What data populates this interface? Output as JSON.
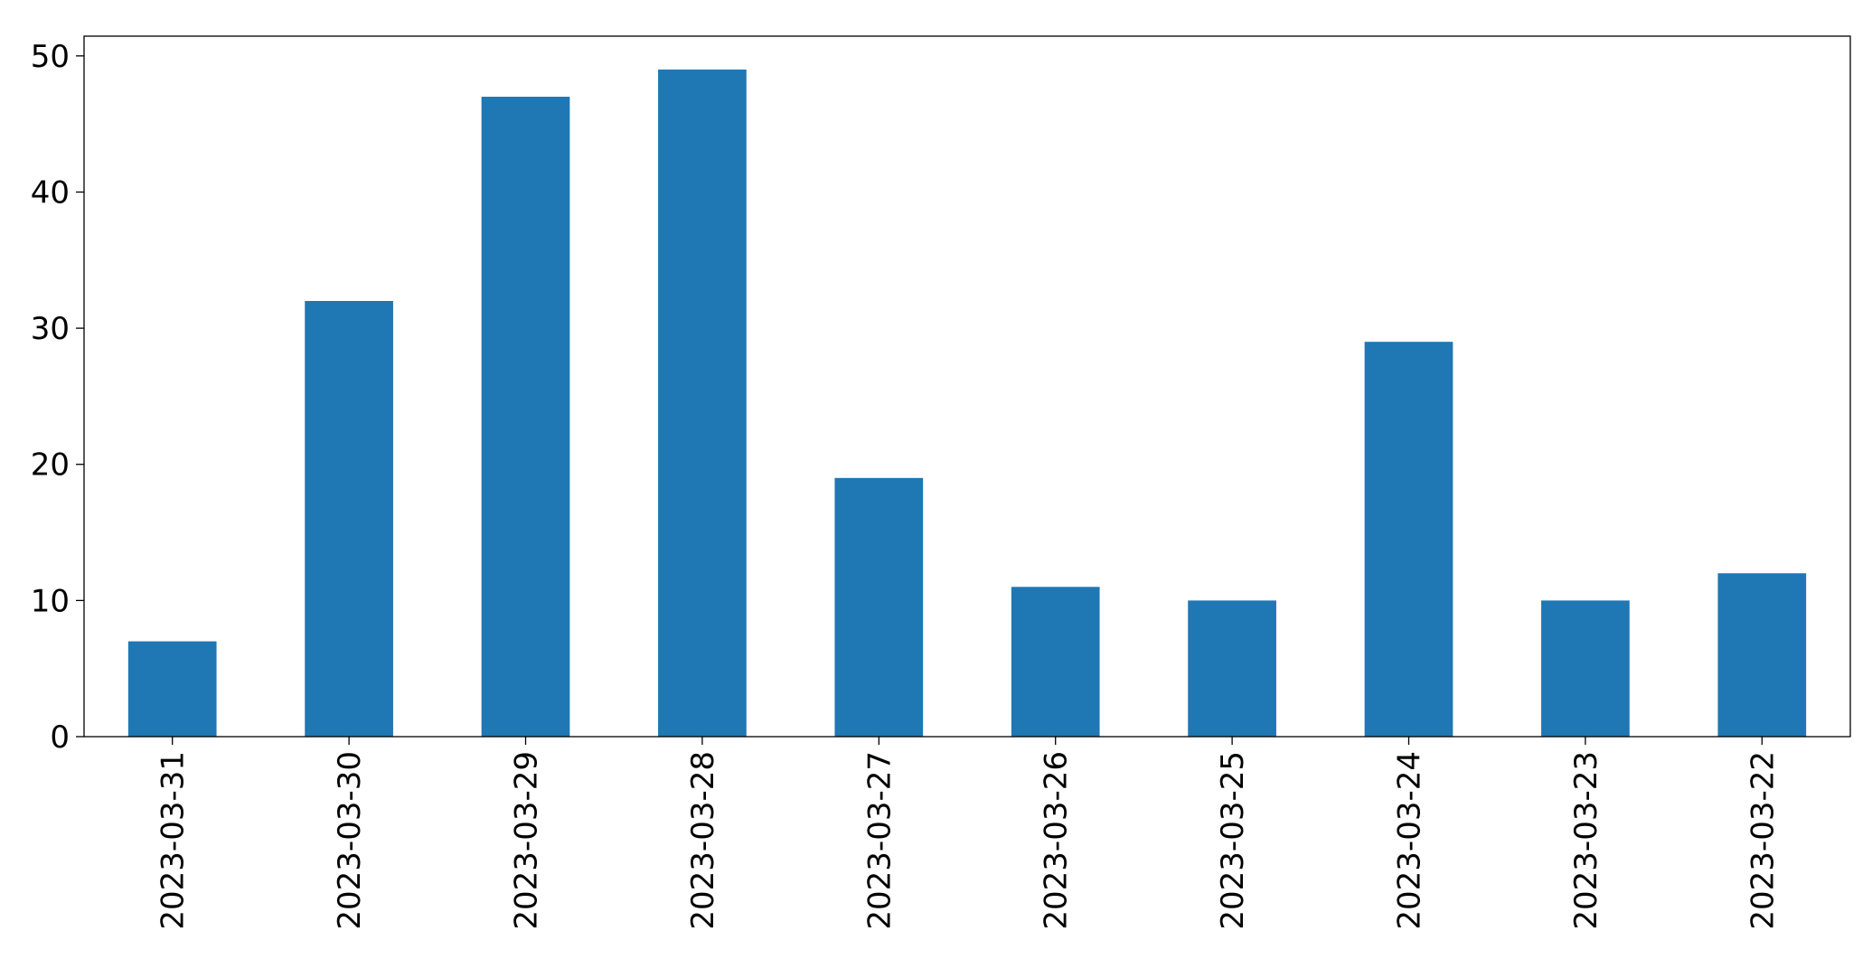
{
  "chart_data": {
    "type": "bar",
    "categories": [
      "2023-03-31",
      "2023-03-30",
      "2023-03-29",
      "2023-03-28",
      "2023-03-27",
      "2023-03-26",
      "2023-03-25",
      "2023-03-24",
      "2023-03-23",
      "2023-03-22"
    ],
    "values": [
      7,
      32,
      47,
      49,
      19,
      11,
      10,
      29,
      10,
      12
    ],
    "color": "#1f77b4",
    "ylim": [
      0,
      51.45
    ],
    "yticks": [
      0,
      10,
      20,
      30,
      40,
      50
    ],
    "grid": false
  }
}
